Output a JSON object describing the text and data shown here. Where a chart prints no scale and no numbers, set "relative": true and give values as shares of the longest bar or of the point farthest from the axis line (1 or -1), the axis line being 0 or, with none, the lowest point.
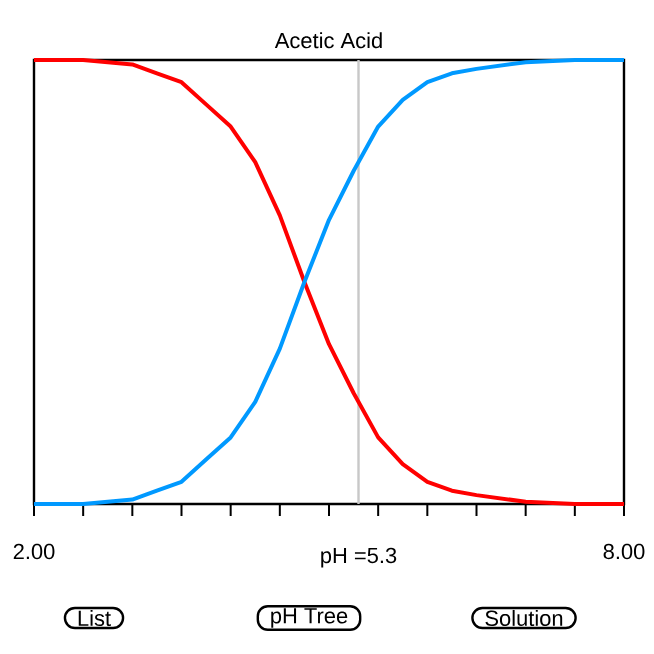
{
  "chart_data": {
    "type": "line",
    "title": "Acetic Acid",
    "relative": true,
    "x": [
      2,
      2.5,
      3,
      3.25,
      3.5,
      3.75,
      4,
      4.25,
      4.5,
      4.75,
      5,
      5.25,
      5.5,
      5.75,
      6,
      6.25,
      6.5,
      7,
      7.5,
      8
    ],
    "xlim": [
      2,
      8
    ],
    "xticks": [
      {
        "value": 2,
        "label": "2.00"
      },
      {
        "value": 2.5,
        "label": null
      },
      {
        "value": 3,
        "label": null
      },
      {
        "value": 3.5,
        "label": null
      },
      {
        "value": 4,
        "label": null
      },
      {
        "value": 4.5,
        "label": null
      },
      {
        "value": 5,
        "label": null
      },
      {
        "value": 5.5,
        "label": null
      },
      {
        "value": 6,
        "label": null
      },
      {
        "value": 6.5,
        "label": null
      },
      {
        "value": 7,
        "label": null
      },
      {
        "value": 7.5,
        "label": null
      },
      {
        "value": 8,
        "label": "8.00"
      }
    ],
    "series": [
      {
        "color": "#ff0000",
        "values": [
          1,
          1,
          0.99,
          0.97,
          0.95,
          0.9,
          0.85,
          0.77,
          0.65,
          0.5,
          0.36,
          0.25,
          0.15,
          0.09,
          0.05,
          0.03,
          0.02,
          0.005,
          0,
          0
        ]
      },
      {
        "color": "#0099ff",
        "values": [
          0,
          0,
          0.01,
          0.03,
          0.05,
          0.1,
          0.15,
          0.23,
          0.35,
          0.5,
          0.64,
          0.75,
          0.85,
          0.91,
          0.95,
          0.97,
          0.98,
          0.995,
          1,
          1
        ]
      }
    ],
    "ref_lines": [
      {
        "axis": "x",
        "value": 5.3,
        "label": "pH =5.3",
        "color": "#c8c8c8"
      }
    ],
    "annotations": [
      "List",
      "pH Tree",
      "Solution"
    ]
  }
}
